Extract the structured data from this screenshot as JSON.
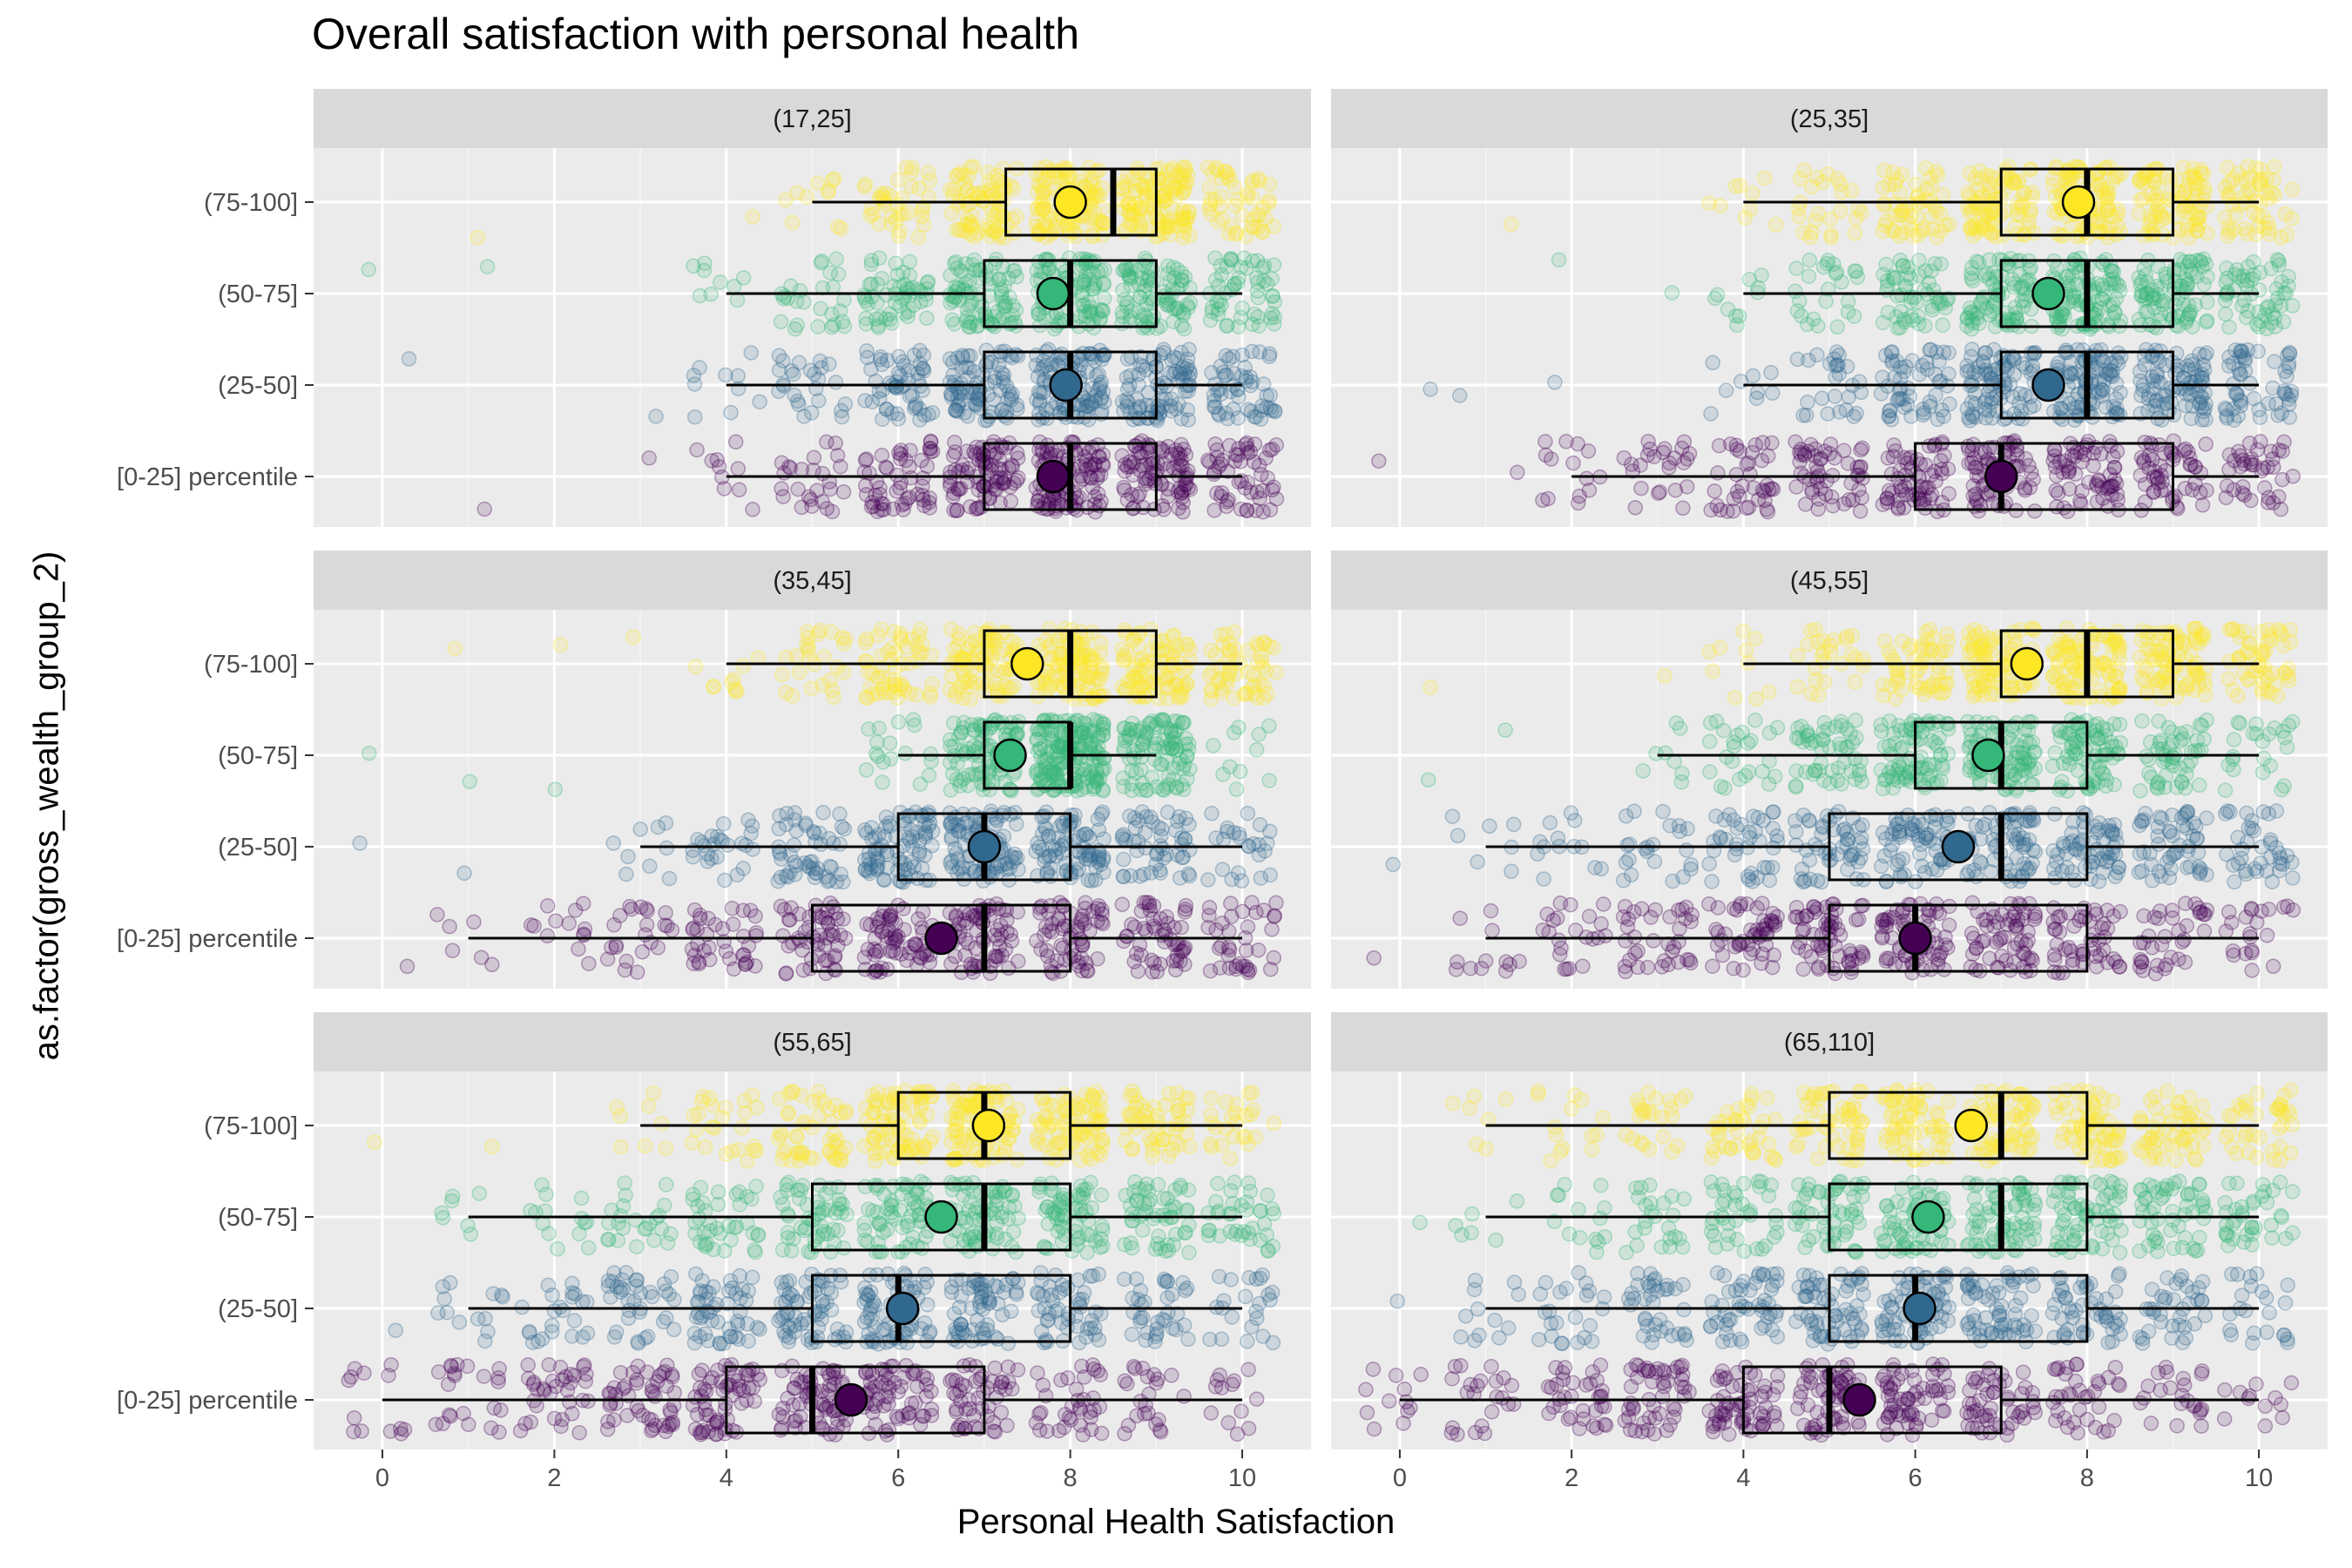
{
  "chart_data": {
    "type": "boxplot-jitter-facets",
    "title": "Overall satisfaction with personal health",
    "xlabel": "Personal Health Satisfaction",
    "ylabel": "as.factor(gross_wealth_group_2)",
    "xlim": [
      -0.8,
      10.8
    ],
    "x_ticks": [
      0,
      2,
      4,
      6,
      8,
      10
    ],
    "y_categories": [
      "(75-100]",
      "(50-75]",
      "(25-50]",
      "[0-25] percentile"
    ],
    "grid": true,
    "legend": "none",
    "colors": {
      "(75-100]": "#FDE725",
      "(50-75]": "#35B779",
      "(25-50]": "#31688E",
      "[0-25] percentile": "#440154"
    },
    "panels": [
      {
        "label": "(17,25]",
        "groups": [
          {
            "name": "(75-100]",
            "whisker_low": 5,
            "q1": 7.25,
            "median": 8.5,
            "q3": 9,
            "whisker_high": 9,
            "mean": 8
          },
          {
            "name": "(50-75]",
            "whisker_low": 4,
            "q1": 7,
            "median": 8,
            "q3": 9,
            "whisker_high": 10,
            "mean": 7.8
          },
          {
            "name": "(25-50]",
            "whisker_low": 4,
            "q1": 7,
            "median": 8,
            "q3": 9,
            "whisker_high": 10,
            "mean": 7.95
          },
          {
            "name": "[0-25] percentile",
            "whisker_low": 4,
            "q1": 7,
            "median": 8,
            "q3": 9,
            "whisker_high": 10,
            "mean": 7.8
          }
        ]
      },
      {
        "label": "(25,35]",
        "groups": [
          {
            "name": "(75-100]",
            "whisker_low": 4,
            "q1": 7,
            "median": 8,
            "q3": 9,
            "whisker_high": 10,
            "mean": 7.9
          },
          {
            "name": "(50-75]",
            "whisker_low": 4,
            "q1": 7,
            "median": 8,
            "q3": 9,
            "whisker_high": 10,
            "mean": 7.55
          },
          {
            "name": "(25-50]",
            "whisker_low": 4,
            "q1": 7,
            "median": 8,
            "q3": 9,
            "whisker_high": 10,
            "mean": 7.55
          },
          {
            "name": "[0-25] percentile",
            "whisker_low": 2,
            "q1": 6,
            "median": 7,
            "q3": 9,
            "whisker_high": 10,
            "mean": 7
          }
        ]
      },
      {
        "label": "(35,45]",
        "groups": [
          {
            "name": "(75-100]",
            "whisker_low": 4,
            "q1": 7,
            "median": 8,
            "q3": 9,
            "whisker_high": 10,
            "mean": 7.5
          },
          {
            "name": "(50-75]",
            "whisker_low": 6,
            "q1": 7,
            "median": 8,
            "q3": 8,
            "whisker_high": 9,
            "mean": 7.3
          },
          {
            "name": "(25-50]",
            "whisker_low": 3,
            "q1": 6,
            "median": 7,
            "q3": 8,
            "whisker_high": 10,
            "mean": 7
          },
          {
            "name": "[0-25] percentile",
            "whisker_low": 1,
            "q1": 5,
            "median": 7,
            "q3": 8,
            "whisker_high": 10,
            "mean": 6.5
          }
        ]
      },
      {
        "label": "(45,55]",
        "groups": [
          {
            "name": "(75-100]",
            "whisker_low": 4,
            "q1": 7,
            "median": 8,
            "q3": 9,
            "whisker_high": 10,
            "mean": 7.3
          },
          {
            "name": "(50-75]",
            "whisker_low": 3,
            "q1": 6,
            "median": 7,
            "q3": 8,
            "whisker_high": 10,
            "mean": 6.85
          },
          {
            "name": "(25-50]",
            "whisker_low": 1,
            "q1": 5,
            "median": 7,
            "q3": 8,
            "whisker_high": 10,
            "mean": 6.5
          },
          {
            "name": "[0-25] percentile",
            "whisker_low": 1,
            "q1": 5,
            "median": 6,
            "q3": 8,
            "whisker_high": 10,
            "mean": 6
          }
        ]
      },
      {
        "label": "(55,65]",
        "groups": [
          {
            "name": "(75-100]",
            "whisker_low": 3,
            "q1": 6,
            "median": 7,
            "q3": 8,
            "whisker_high": 10,
            "mean": 7.05
          },
          {
            "name": "(50-75]",
            "whisker_low": 1,
            "q1": 5,
            "median": 7,
            "q3": 8,
            "whisker_high": 10,
            "mean": 6.5
          },
          {
            "name": "(25-50]",
            "whisker_low": 1,
            "q1": 5,
            "median": 6,
            "q3": 8,
            "whisker_high": 10,
            "mean": 6.05
          },
          {
            "name": "[0-25] percentile",
            "whisker_low": 0,
            "q1": 4,
            "median": 5,
            "q3": 7,
            "whisker_high": 10,
            "mean": 5.45
          }
        ]
      },
      {
        "label": "(65,110]",
        "groups": [
          {
            "name": "(75-100]",
            "whisker_low": 1,
            "q1": 5,
            "median": 7,
            "q3": 8,
            "whisker_high": 10,
            "mean": 6.65
          },
          {
            "name": "(50-75]",
            "whisker_low": 1,
            "q1": 5,
            "median": 7,
            "q3": 8,
            "whisker_high": 10,
            "mean": 6.15
          },
          {
            "name": "(25-50]",
            "whisker_low": 1,
            "q1": 5,
            "median": 6,
            "q3": 8,
            "whisker_high": 10,
            "mean": 6.05
          },
          {
            "name": "[0-25] percentile",
            "whisker_low": 0,
            "q1": 4,
            "median": 5,
            "q3": 7,
            "whisker_high": 10,
            "mean": 5.35
          }
        ]
      }
    ]
  }
}
